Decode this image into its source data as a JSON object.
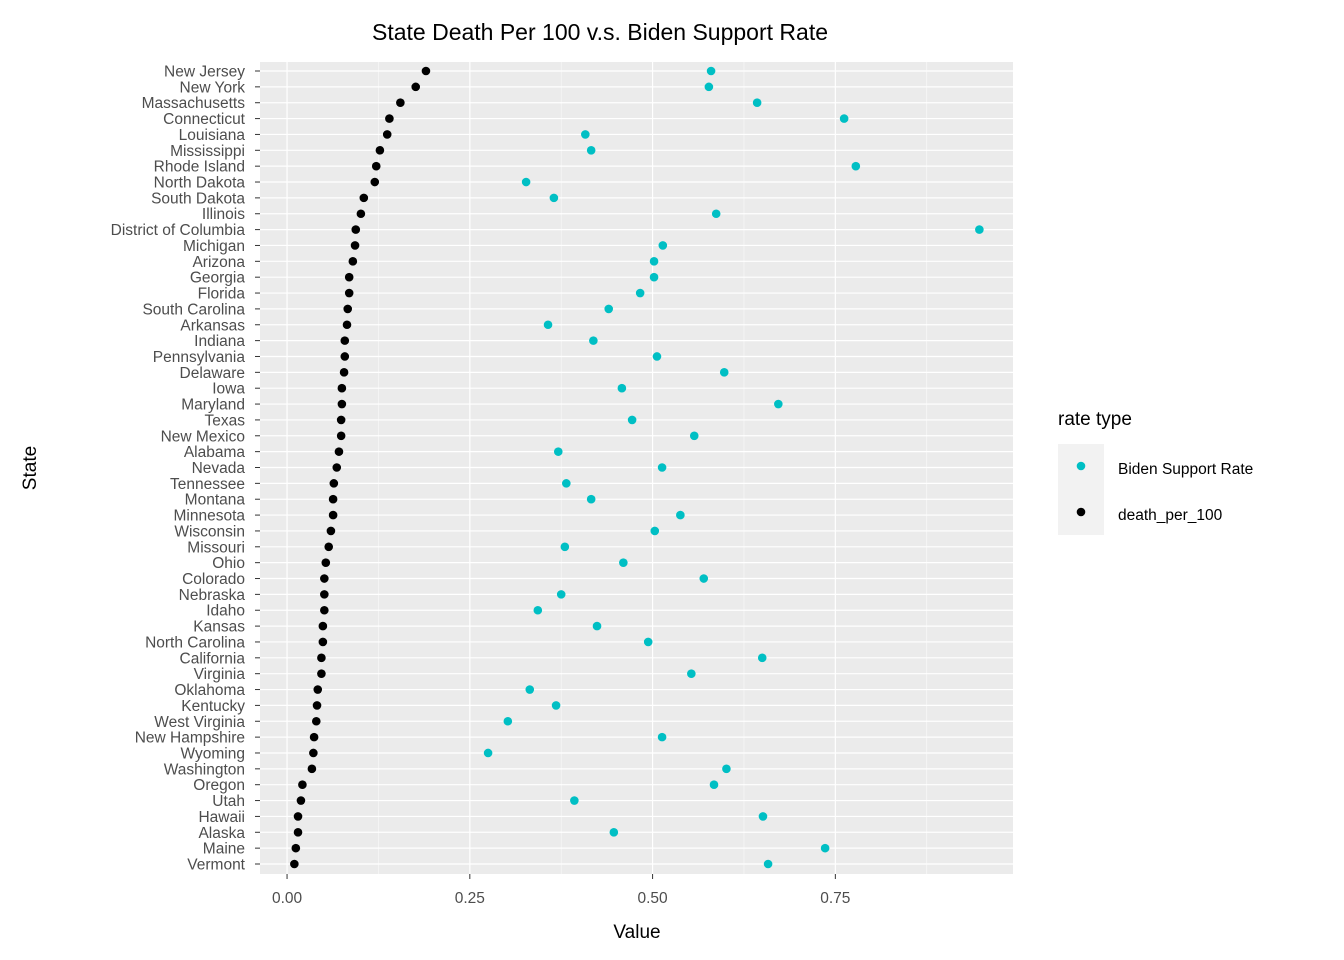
{
  "chart_data": {
    "type": "scatter",
    "title": "State Death Per 100 v.s. Biden Support Rate",
    "xlabel": "Value",
    "ylabel": "State",
    "xlim": [
      -0.037,
      0.993
    ],
    "xticks": [
      0,
      0.25,
      0.5,
      0.75
    ],
    "xtick_labels": [
      "0.00",
      "0.25",
      "0.50",
      "0.75"
    ],
    "grid": true,
    "legend": {
      "title": "rate type",
      "placement": "right",
      "entries": [
        "Biden Support Rate",
        "death_per_100"
      ]
    },
    "colors": {
      "Biden Support Rate": "#00BFC4",
      "death_per_100": "#000000"
    },
    "categories": [
      "New Jersey",
      "New York",
      "Massachusetts",
      "Connecticut",
      "Louisiana",
      "Mississippi",
      "Rhode Island",
      "North Dakota",
      "South Dakota",
      "Illinois",
      "District of Columbia",
      "Michigan",
      "Arizona",
      "Georgia",
      "Florida",
      "South Carolina",
      "Arkansas",
      "Indiana",
      "Pennsylvania",
      "Delaware",
      "Iowa",
      "Maryland",
      "Texas",
      "New Mexico",
      "Alabama",
      "Nevada",
      "Tennessee",
      "Montana",
      "Minnesota",
      "Wisconsin",
      "Missouri",
      "Ohio",
      "Colorado",
      "Nebraska",
      "Idaho",
      "Kansas",
      "North Carolina",
      "California",
      "Virginia",
      "Oklahoma",
      "Kentucky",
      "West Virginia",
      "New Hampshire",
      "Wyoming",
      "Washington",
      "Oregon",
      "Utah",
      "Hawaii",
      "Alaska",
      "Maine",
      "Vermont"
    ],
    "series": [
      {
        "name": "Biden Support Rate",
        "values": [
          0.58,
          0.577,
          0.643,
          0.762,
          0.408,
          0.416,
          0.778,
          0.327,
          0.365,
          0.587,
          0.947,
          0.514,
          0.502,
          0.502,
          0.483,
          0.44,
          0.357,
          0.419,
          0.506,
          0.598,
          0.458,
          0.672,
          0.472,
          0.557,
          0.371,
          0.513,
          0.382,
          0.416,
          0.538,
          0.503,
          0.38,
          0.46,
          0.57,
          0.375,
          0.343,
          0.424,
          0.494,
          0.65,
          0.553,
          0.332,
          0.368,
          0.302,
          0.513,
          0.275,
          0.601,
          0.584,
          0.393,
          0.651,
          0.447,
          0.736,
          0.658
        ]
      },
      {
        "name": "death_per_100",
        "values": [
          0.19,
          0.176,
          0.155,
          0.14,
          0.137,
          0.127,
          0.122,
          0.12,
          0.105,
          0.101,
          0.094,
          0.093,
          0.09,
          0.085,
          0.085,
          0.083,
          0.082,
          0.079,
          0.079,
          0.078,
          0.075,
          0.075,
          0.074,
          0.074,
          0.071,
          0.068,
          0.064,
          0.063,
          0.063,
          0.06,
          0.057,
          0.053,
          0.051,
          0.051,
          0.051,
          0.049,
          0.049,
          0.047,
          0.047,
          0.042,
          0.041,
          0.04,
          0.037,
          0.036,
          0.034,
          0.021,
          0.019,
          0.015,
          0.015,
          0.012,
          0.01
        ]
      }
    ]
  }
}
